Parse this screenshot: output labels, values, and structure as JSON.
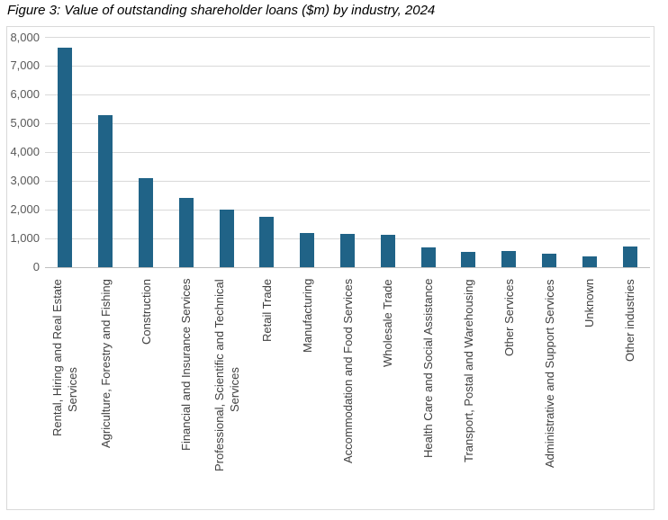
{
  "chart_data": {
    "type": "bar",
    "title": "Figure 3: Value of outstanding shareholder loans ($m) by industry, 2024",
    "xlabel": "",
    "ylabel": "",
    "ylim": [
      0,
      8000
    ],
    "ytick_interval": 1000,
    "ytick_labels": [
      "0",
      "1,000",
      "2,000",
      "3,000",
      "4,000",
      "5,000",
      "6,000",
      "7,000",
      "8,000"
    ],
    "grid": true,
    "legend": "none",
    "categories": [
      "Rental, Hiring and Real Estate Services",
      "Agriculture, Forestry and Fishing",
      "Construction",
      "Financial and Insurance Services",
      "Professional, Scientific and Technical Services",
      "Retail Trade",
      "Manufacturing",
      "Accommodation and Food Services",
      "Wholesale Trade",
      "Health Care and Social Assistance",
      "Transport, Postal and Warehousing",
      "Other Services",
      "Administrative and Support Services",
      "Unknown",
      "Other industries"
    ],
    "category_display": [
      "Rental, Hiring and Real Estate\nServices",
      "Agriculture, Forestry and Fishing",
      "Construction",
      "Financial and Insurance Services",
      "Professional, Scientific and Technical\nServices",
      "Retail Trade",
      "Manufacturing",
      "Accommodation and Food Services",
      "Wholesale Trade",
      "Health Care and Social Assistance",
      "Transport, Postal and Warehousing",
      "Other Services",
      "Administrative and Support Services",
      "Unknown",
      "Other industries"
    ],
    "values": [
      7650,
      5300,
      3100,
      2400,
      2000,
      1750,
      1180,
      1160,
      1130,
      680,
      530,
      550,
      480,
      390,
      710
    ],
    "colors": {
      "bar": "#206387",
      "gridline": "#d9d9d9",
      "axis_line": "#bfbfbf",
      "frame_border": "#d9d9d9",
      "y_tick_text": "#595959",
      "category_text": "#404040",
      "title_text": "#000000"
    }
  }
}
